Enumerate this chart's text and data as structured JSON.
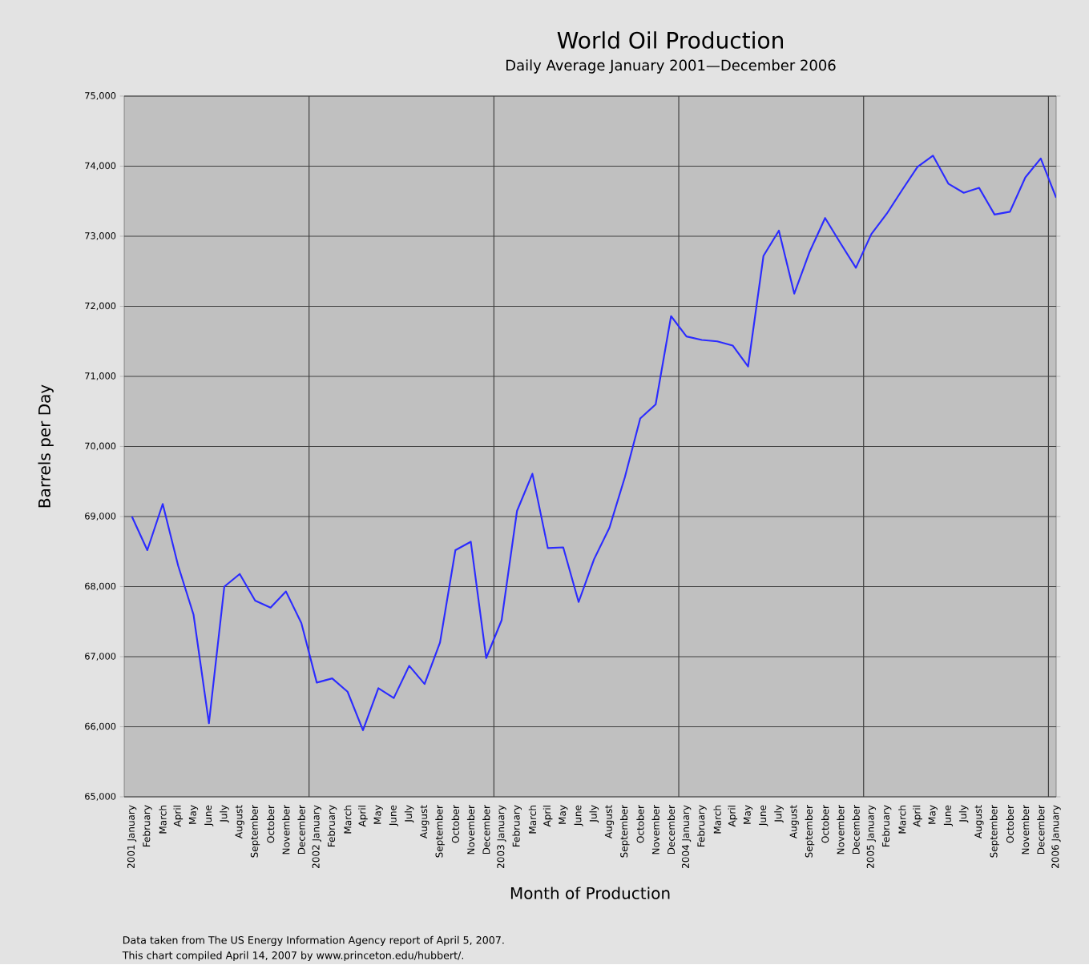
{
  "chart_data": {
    "type": "line",
    "title": "World Oil Production",
    "subtitle": "Daily Average January 2001—December 2006",
    "xlabel": "Month of Production",
    "ylabel": "Barrels per Day",
    "categories": [
      "2001 January",
      "February",
      "March",
      "April",
      "May",
      "June",
      "July",
      "August",
      "September",
      "October",
      "November",
      "December",
      "2002 January",
      "February",
      "March",
      "April",
      "May",
      "June",
      "July",
      "August",
      "September",
      "October",
      "November",
      "December",
      "2003 January",
      "February",
      "March",
      "April",
      "May",
      "June",
      "July",
      "August",
      "September",
      "October",
      "November",
      "December",
      "2004 January",
      "February",
      "March",
      "April",
      "May",
      "June",
      "July",
      "August",
      "September",
      "October",
      "November",
      "December",
      "2005 January",
      "February",
      "March",
      "April",
      "May",
      "June",
      "July",
      "August",
      "September",
      "October",
      "November",
      "December",
      "2006 January"
    ],
    "series": [
      {
        "color": "#2b2bff",
        "values": [
          69000,
          68520,
          69180,
          68300,
          67600,
          66050,
          68000,
          68180,
          67800,
          67700,
          67930,
          67480,
          66630,
          66690,
          66500,
          65950,
          66550,
          66410,
          66870,
          66610,
          67200,
          68520,
          68640,
          66980,
          67520,
          69080,
          69610,
          68550,
          68560,
          67780,
          68390,
          68840,
          69560,
          70400,
          70600,
          71860,
          71570,
          71520,
          71500,
          71440,
          71140,
          72720,
          73080,
          72180,
          72780,
          73260,
          72900,
          72550,
          73030,
          73320,
          73660,
          73990,
          74150,
          73750,
          73620,
          73690,
          73310,
          73350,
          73840,
          74110,
          73550
        ]
      }
    ],
    "ylim": [
      65000,
      75000
    ],
    "yticks": [
      {
        "value": 65000,
        "label": "65,000"
      },
      {
        "value": 66000,
        "label": "66,000"
      },
      {
        "value": 67000,
        "label": "67,000"
      },
      {
        "value": 68000,
        "label": "68,000"
      },
      {
        "value": 69000,
        "label": "69,000"
      },
      {
        "value": 70000,
        "label": "70,000"
      },
      {
        "value": 71000,
        "label": "71,000"
      },
      {
        "value": 72000,
        "label": "72,000"
      },
      {
        "value": 73000,
        "label": "73,000"
      },
      {
        "value": 74000,
        "label": "74,000"
      },
      {
        "value": 75000,
        "label": "75,000"
      }
    ],
    "grid": true,
    "marker": "none",
    "line_style": "solid",
    "annotations": [
      "Data taken from The US Energy Information Agency report of April 5, 2007.",
      "This chart compiled April 14, 2007 by www.princeton.edu/hubbert/."
    ]
  }
}
